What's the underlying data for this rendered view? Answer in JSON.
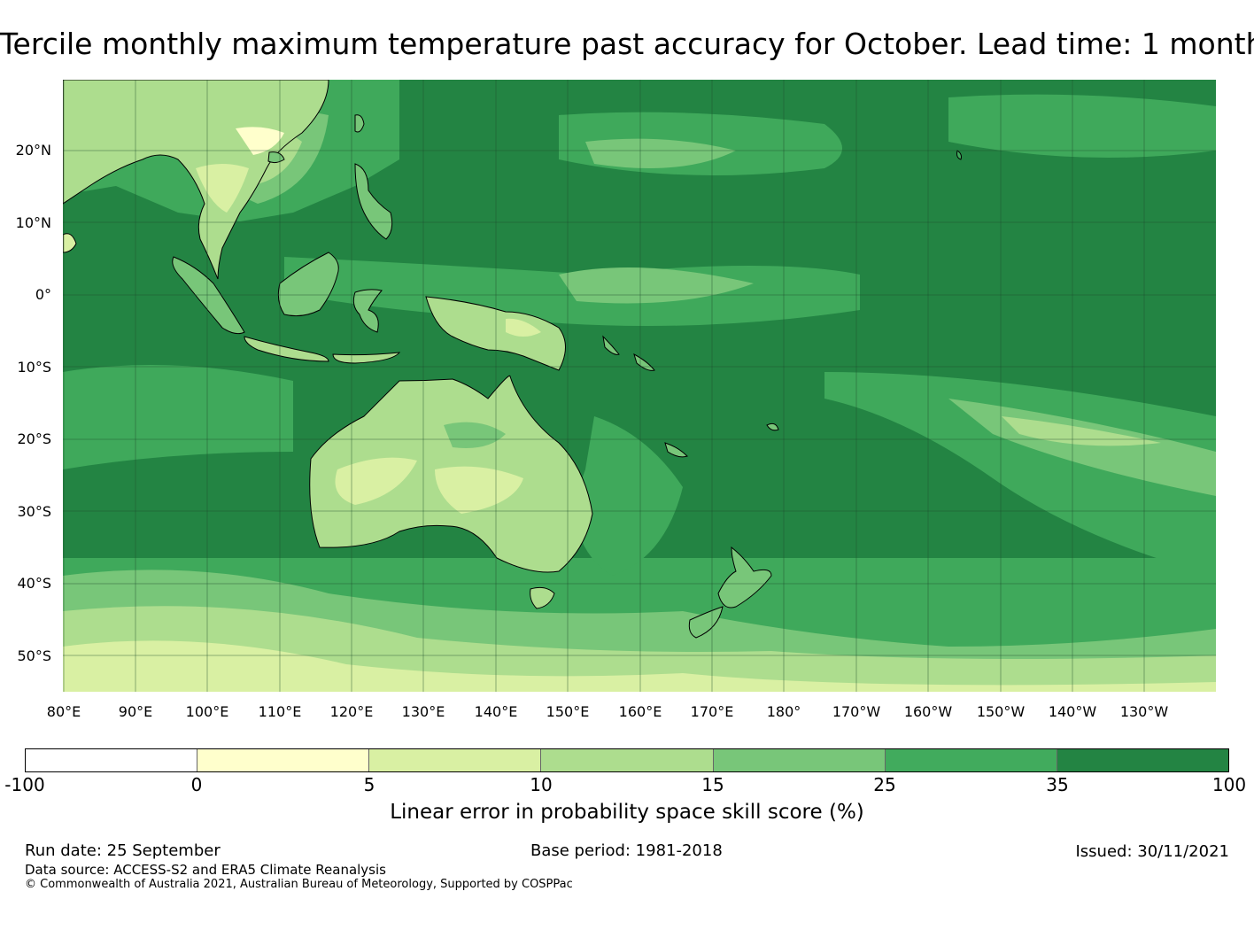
{
  "title": "Tercile monthly maximum temperature past accuracy for October. Lead time: 1 month",
  "map": {
    "longitude_labels": [
      "80°E",
      "90°E",
      "100°E",
      "110°E",
      "120°E",
      "130°E",
      "140°E",
      "150°E",
      "160°E",
      "170°E",
      "180°",
      "170°W",
      "160°W",
      "150°W",
      "140°W",
      "130°W"
    ],
    "latitude_labels": [
      "20°N",
      "10°N",
      "0°",
      "10°S",
      "20°S",
      "30°S",
      "40°S",
      "50°S"
    ]
  },
  "colorbar": {
    "label": "Linear error in probability space skill score (%)",
    "ticks": [
      "-100",
      "0",
      "5",
      "10",
      "15",
      "25",
      "35",
      "100"
    ],
    "colors": [
      "#ffffff",
      "#ffffcc",
      "#d9f0a3",
      "#addd8e",
      "#78c679",
      "#41ab5d",
      "#238443"
    ]
  },
  "footer": {
    "run_date": "Run date: 25 September",
    "base_period": "Base period: 1981-2018",
    "issued": "Issued: 30/11/2021",
    "data_source": "Data source: ACCESS-S2 and ERA5 Climate Reanalysis",
    "copyright": "© Commonwealth of Australia 2021, Australian Bureau of Meteorology, Supported by COSPPac"
  }
}
